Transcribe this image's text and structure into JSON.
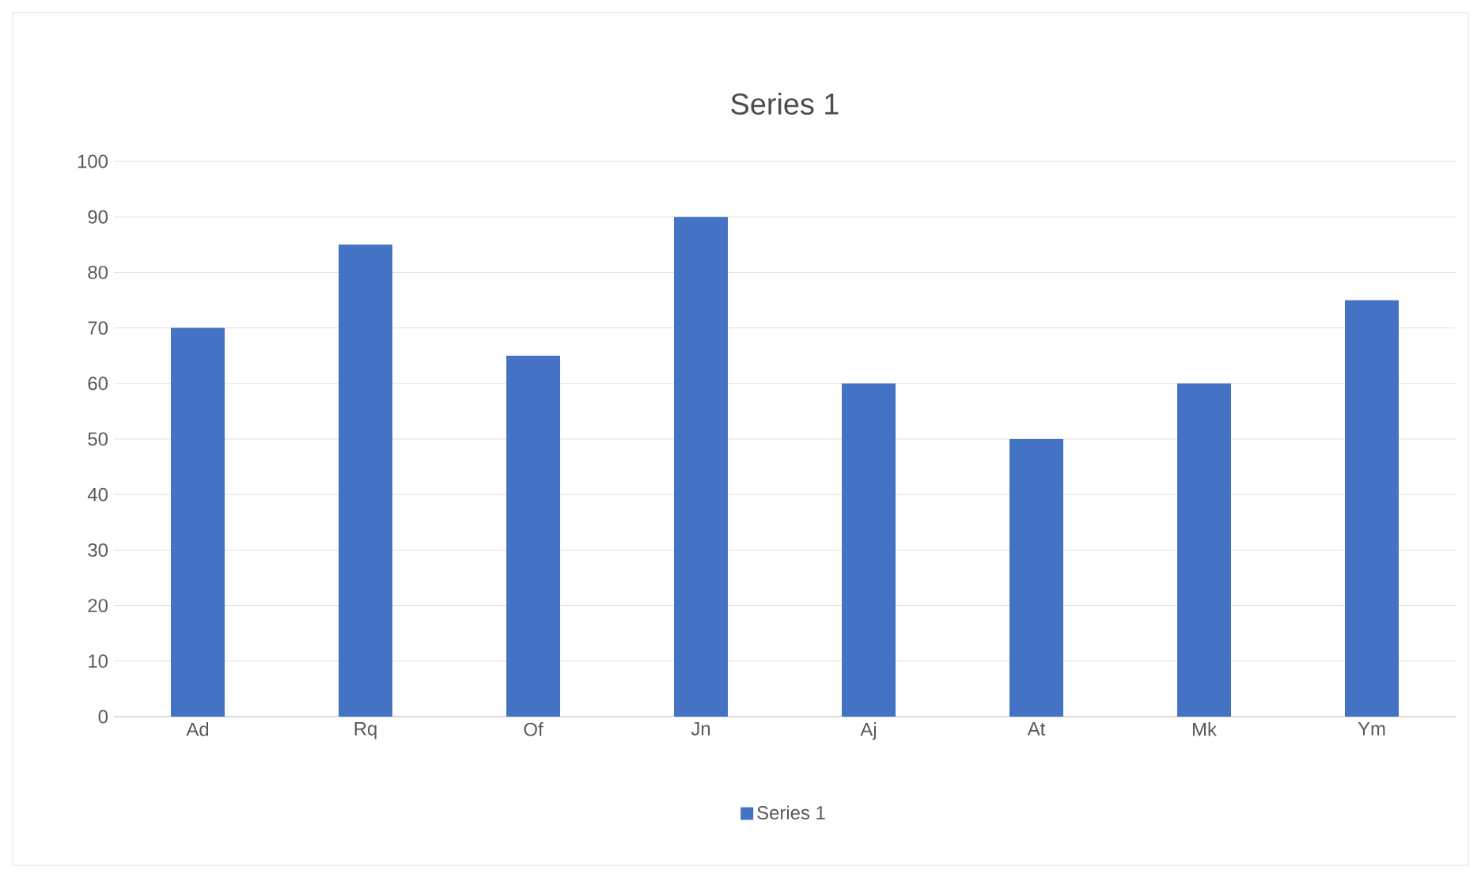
{
  "chart_data": {
    "type": "bar",
    "title": "Series 1",
    "categories": [
      "Ad",
      "Rq",
      "Of",
      "Jn",
      "Aj",
      "At",
      "Mk",
      "Ym"
    ],
    "series": [
      {
        "name": "Series 1",
        "color": "#4472c4",
        "values": [
          70,
          85,
          65,
          90,
          60,
          50,
          60,
          75
        ]
      }
    ],
    "ylim": [
      0,
      100
    ],
    "yticks": [
      0,
      10,
      20,
      30,
      40,
      50,
      60,
      70,
      80,
      90,
      100
    ],
    "grid": "y",
    "legend": "bottom"
  }
}
